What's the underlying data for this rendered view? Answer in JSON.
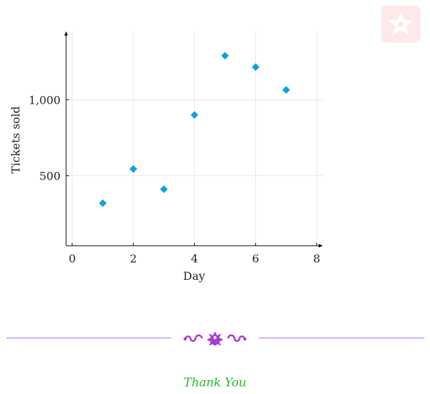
{
  "chart_data": {
    "type": "scatter",
    "title": "",
    "xlabel": "Day",
    "ylabel": "Tickets sold",
    "xlim": [
      -0.2,
      8.2
    ],
    "ylim": [
      40,
      1450
    ],
    "x_ticks": [
      0,
      2,
      4,
      6,
      8
    ],
    "x_tick_labels": [
      "0",
      "2",
      "4",
      "6",
      "8"
    ],
    "y_ticks": [
      500,
      1000
    ],
    "y_tick_labels": [
      "500",
      "1,000"
    ],
    "grid": true,
    "marker": "diamond",
    "colors": {
      "marker": "#0aa3e0",
      "grid": "#e6e6e6",
      "axis": "#000000"
    },
    "series": [
      {
        "x": [
          1,
          2,
          3,
          4,
          5,
          6,
          7
        ],
        "y": [
          320,
          545,
          412,
          900,
          1290,
          1215,
          1065
        ]
      }
    ]
  },
  "footer": {
    "thanks_text": "Thank You",
    "divider_color": "#b36bff",
    "ornament_color": "#a63ad6",
    "thanks_color": "#22bb22"
  },
  "badge": {
    "icon": "star-badge-icon",
    "color": "#fde8ea"
  }
}
